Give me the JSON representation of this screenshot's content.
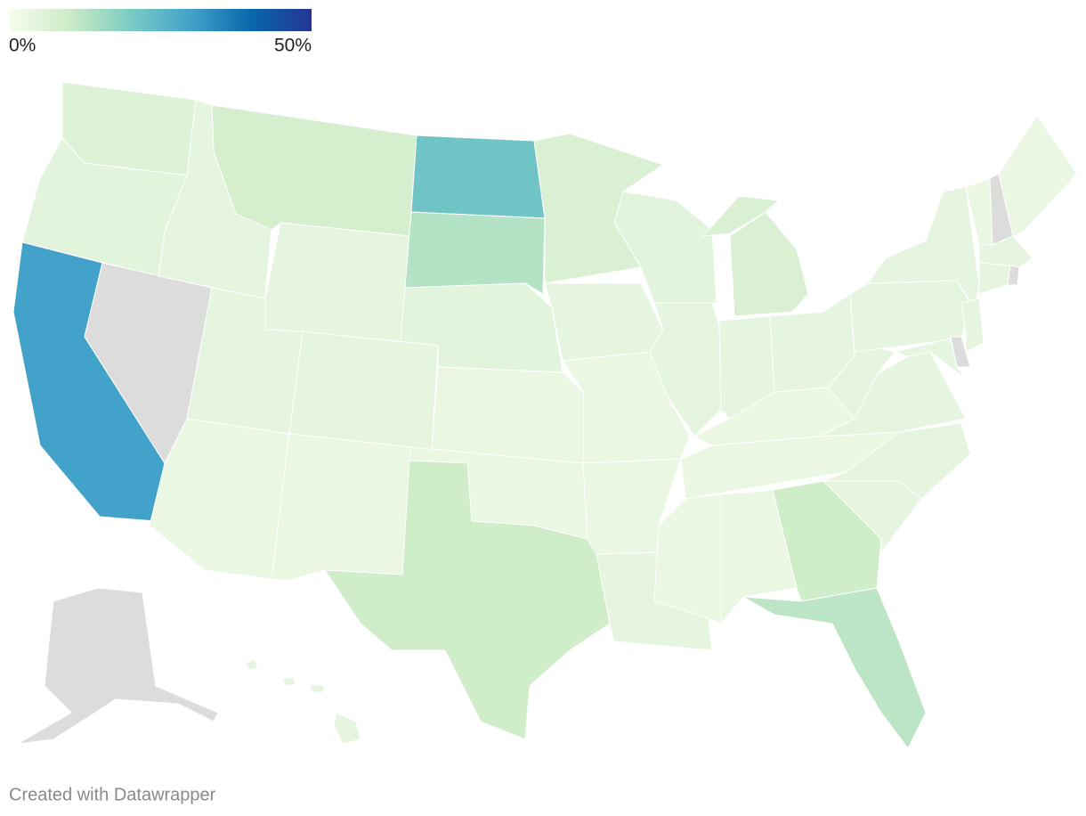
{
  "legend": {
    "ticks": [
      {
        "value": 0,
        "label": "0%"
      },
      {
        "value": 50,
        "label": "50%"
      }
    ]
  },
  "map": {
    "values": [
      6,
      5,
      30,
      null,
      4,
      8,
      4,
      4,
      3,
      4,
      3,
      22,
      13,
      5,
      3,
      3,
      9,
      7,
      4,
      3,
      3,
      4,
      5,
      4,
      7,
      4,
      4,
      3,
      3,
      3,
      3,
      9,
      12,
      4,
      4,
      4,
      4,
      4,
      4,
      3,
      null,
      3,
      4,
      4,
      null,
      4,
      null,
      4,
      null,
      4
    ]
  },
  "footer": "Created with Datawrapper"
}
